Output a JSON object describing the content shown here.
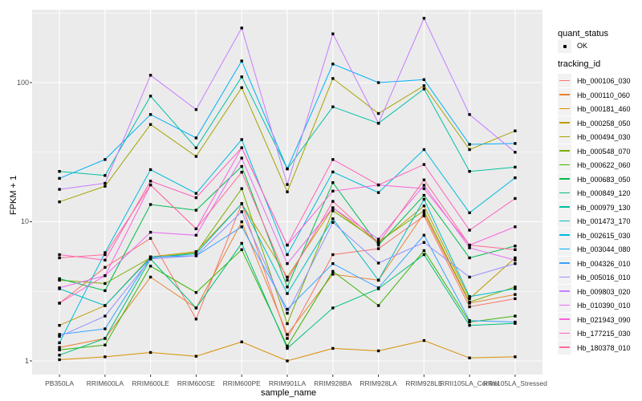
{
  "chart_data": {
    "type": "line",
    "title": "",
    "xlabel": "sample_name",
    "ylabel": "FPKM + 1",
    "scale": "log10",
    "grid": "on",
    "legend_position": "right",
    "y_major_ticks": [
      1,
      10,
      100
    ],
    "y_minor_ticks": [
      3.162,
      31.62,
      316.2
    ],
    "ylim_log10": [
      -0.1,
      2.53
    ],
    "categories": [
      "PB350LA",
      "RRIM600LA",
      "RRIM600LE",
      "RRIM600SE",
      "RRIM600PE",
      "RRIM901LA",
      "RRIM928BA",
      "RRIM928LA",
      "RRIM928LE",
      "RRII105LA_Control",
      "RRII105LA_Stressed"
    ],
    "series": [
      {
        "name": "Hb_000106_030",
        "color": "#F8766D",
        "values": [
          2.6,
          4.7,
          7.6,
          2.0,
          13.5,
          1.45,
          5.8,
          6.4,
          11,
          2.45,
          2.8
        ]
      },
      {
        "name": "Hb_000110_060",
        "color": "#EA8331",
        "values": [
          1.25,
          1.45,
          4.0,
          2.4,
          10,
          1.55,
          4.2,
          3.8,
          11.5,
          2.6,
          3.0
        ]
      },
      {
        "name": "Hb_000181_460",
        "color": "#D89000",
        "values": [
          1.02,
          1.07,
          1.15,
          1.08,
          1.37,
          1.0,
          1.23,
          1.18,
          1.4,
          1.05,
          1.07
        ]
      },
      {
        "name": "Hb_000258_050",
        "color": "#C09B00",
        "values": [
          1.8,
          2.5,
          5.6,
          6.1,
          13.5,
          4.0,
          12.6,
          7.0,
          13,
          2.8,
          5.5
        ]
      },
      {
        "name": "Hb_000494_030",
        "color": "#A3A500",
        "values": [
          13.9,
          18,
          50,
          29.5,
          92,
          16.4,
          107,
          60,
          95,
          33,
          45
        ]
      },
      {
        "name": "Hb_000548_070",
        "color": "#7CAE00",
        "values": [
          3.8,
          3.6,
          5.5,
          6.0,
          17.3,
          1.85,
          12.0,
          7.2,
          12,
          2.65,
          3.4
        ]
      },
      {
        "name": "Hb_000622_060",
        "color": "#39B600",
        "values": [
          1.2,
          1.3,
          4.8,
          3.1,
          6.3,
          1.28,
          4.4,
          2.5,
          6.2,
          1.9,
          2.1
        ]
      },
      {
        "name": "Hb_000683_050",
        "color": "#00BB4E",
        "values": [
          3.9,
          3.2,
          13.3,
          12.1,
          25,
          3.4,
          19.1,
          6.8,
          15.5,
          5.5,
          6.7
        ]
      },
      {
        "name": "Hb_000849_120",
        "color": "#00BF7D",
        "values": [
          1.1,
          1.45,
          5.4,
          2.4,
          7.0,
          1.23,
          2.4,
          3.3,
          5.8,
          1.8,
          1.86
        ]
      },
      {
        "name": "Hb_000979_130",
        "color": "#00C1A3",
        "values": [
          23,
          21.5,
          80,
          34,
          110,
          24,
          67,
          51,
          90,
          23,
          24.7
        ]
      },
      {
        "name": "Hb_001473_170",
        "color": "#00BFC4",
        "values": [
          3.3,
          2.5,
          5.5,
          5.9,
          13.5,
          3.05,
          10.5,
          3.8,
          14.5,
          2.9,
          3.3
        ]
      },
      {
        "name": "Hb_002615_030",
        "color": "#00BAE0",
        "values": [
          1.35,
          6.0,
          23.7,
          16,
          39,
          5.8,
          22.8,
          16.2,
          33,
          11.6,
          20.7
        ]
      },
      {
        "name": "Hb_003044_080",
        "color": "#00B0F6",
        "values": [
          20.5,
          28,
          59,
          40,
          143,
          24,
          136,
          100,
          105,
          36,
          36.5
        ]
      },
      {
        "name": "Hb_004326_010",
        "color": "#35A2FF",
        "values": [
          1.55,
          1.7,
          5.6,
          5.7,
          9.2,
          2.35,
          5.0,
          3.35,
          8.0,
          1.95,
          1.9
        ]
      },
      {
        "name": "Hb_005016_010",
        "color": "#9590FF",
        "values": [
          1.5,
          2.1,
          5.4,
          5.7,
          11.8,
          2.2,
          9.9,
          5.05,
          7.1,
          4.0,
          5.0
        ]
      },
      {
        "name": "Hb_009803_020",
        "color": "#C77CFF",
        "values": [
          17.1,
          18.9,
          113,
          64,
          247,
          18.5,
          224,
          51,
          290,
          59,
          31.6
        ]
      },
      {
        "name": "Hb_010390_010",
        "color": "#E76BF3",
        "values": [
          3.35,
          4.1,
          8.4,
          8.0,
          28.7,
          5.0,
          12.6,
          7.5,
          18.3,
          6.5,
          5.3
        ]
      },
      {
        "name": "Hb_021943_090",
        "color": "#FA62DB",
        "values": [
          2.6,
          4.1,
          18.4,
          8.9,
          34,
          6.8,
          16.6,
          18.4,
          17.3,
          6.8,
          9.2
        ]
      },
      {
        "name": "Hb_177215_030",
        "color": "#FF62BC",
        "values": [
          5.8,
          5.3,
          19.6,
          14.9,
          34,
          6.8,
          28,
          18.4,
          25.8,
          8.7,
          14.7
        ]
      },
      {
        "name": "Hb_180378_010",
        "color": "#FF6A98",
        "values": [
          5.5,
          5.8,
          18.4,
          8.9,
          22.7,
          3.8,
          14,
          7.0,
          20,
          6.8,
          6.3
        ]
      }
    ]
  },
  "legend": {
    "quant_title": "quant_status",
    "quant_entries": [
      {
        "label": "OK",
        "glyph": "point-icon"
      }
    ],
    "tracking_title": "tracking_id"
  },
  "axes": {
    "y_tick_labels": [
      "1",
      "10",
      "100"
    ],
    "y_title": "FPKM + 1",
    "x_title": "sample_name"
  },
  "colors": {
    "panel_bg": "#EBEBEB",
    "grid": "#FFFFFF",
    "tick": "#333333",
    "tick_label": "#4D4D4D",
    "point": "#000000",
    "legend_key_bg": "#F2F2F2"
  }
}
